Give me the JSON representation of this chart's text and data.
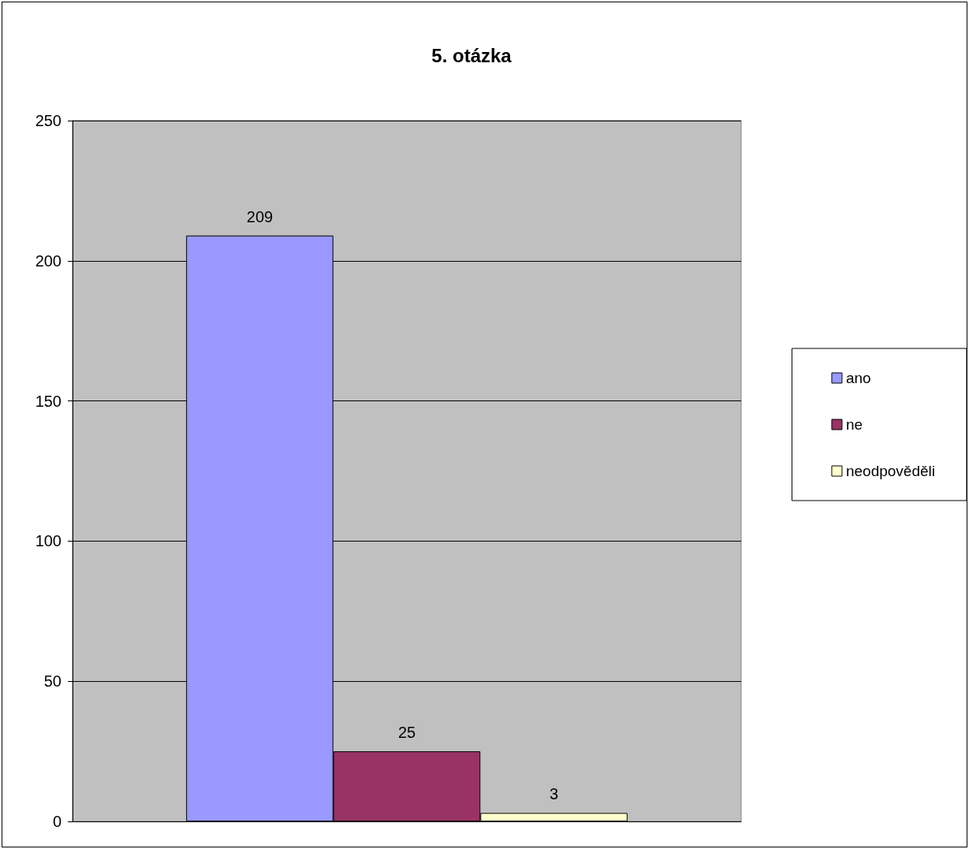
{
  "chart_data": {
    "type": "bar",
    "title": "5. otázka",
    "categories": [
      null
    ],
    "series": [
      {
        "name": "ano",
        "color": "#9999ff",
        "values": [
          209
        ]
      },
      {
        "name": "ne",
        "color": "#993366",
        "values": [
          25
        ]
      },
      {
        "name": "neodpověděli",
        "color": "#ffffcc",
        "values": [
          3
        ]
      }
    ],
    "ylim": [
      0,
      250
    ],
    "yticks": [
      0,
      50,
      100,
      150,
      200,
      250
    ],
    "grid": "y",
    "legend": "right",
    "data_labels": true
  }
}
